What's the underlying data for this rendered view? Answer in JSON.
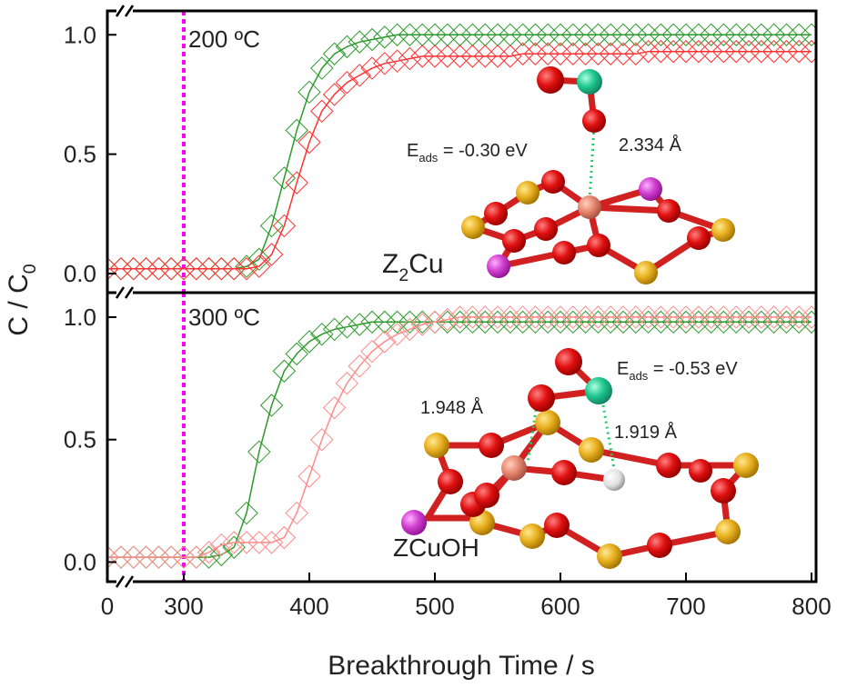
{
  "chart_data": [
    {
      "type": "scatter-line",
      "ylabel": {
        "text": "C / C",
        "sub": "0"
      },
      "ylim": [
        -0.08,
        1.1
      ],
      "yticks": [
        {
          "value": 0,
          "label": "0.0"
        },
        {
          "value": 0.5,
          "label": "0.5"
        },
        {
          "value": 1,
          "label": "1.0"
        }
      ],
      "xlim": [
        0,
        800
      ],
      "x": [
        0,
        250,
        260,
        270,
        280,
        290,
        300,
        310,
        320,
        330,
        340,
        350,
        360,
        370,
        380,
        390,
        400,
        410,
        420,
        430,
        440,
        450,
        460,
        470,
        480,
        490,
        500,
        510,
        520,
        530,
        540,
        550,
        560,
        570,
        580,
        590,
        600,
        610,
        620,
        630,
        640,
        650,
        660,
        670,
        680,
        690,
        700,
        710,
        720,
        730,
        740,
        750,
        760,
        770,
        780,
        790,
        800
      ],
      "series": [
        {
          "color": "#2a9a2a",
          "values": [
            0.02,
            0.02,
            0.02,
            0.02,
            0.02,
            0.02,
            0.02,
            0.02,
            0.02,
            0.02,
            0.02,
            0.03,
            0.06,
            0.2,
            0.4,
            0.6,
            0.76,
            0.86,
            0.92,
            0.95,
            0.97,
            0.98,
            0.99,
            1,
            1,
            1,
            1,
            1,
            1,
            1,
            1,
            1,
            1,
            1,
            1,
            1,
            1,
            1,
            1,
            1,
            1,
            1,
            1,
            1,
            1,
            1,
            1,
            1,
            1,
            1,
            1,
            1,
            1,
            1,
            1,
            1,
            1
          ]
        },
        {
          "color": "#ff3030",
          "values": [
            0.02,
            0.02,
            0.02,
            0.02,
            0.02,
            0.02,
            0.02,
            0.02,
            0.02,
            0.02,
            0.02,
            0.02,
            0.03,
            0.08,
            0.2,
            0.38,
            0.55,
            0.68,
            0.75,
            0.8,
            0.83,
            0.86,
            0.88,
            0.89,
            0.9,
            0.91,
            0.91,
            0.91,
            0.91,
            0.91,
            0.91,
            0.91,
            0.91,
            0.92,
            0.92,
            0.92,
            0.92,
            0.92,
            0.92,
            0.92,
            0.92,
            0.92,
            0.92,
            0.93,
            0.93,
            0.93,
            0.93,
            0.93,
            0.93,
            0.93,
            0.93,
            0.93,
            0.93,
            0.93,
            0.93,
            0.93,
            0.93
          ]
        }
      ],
      "annotations": [
        {
          "text": "200 ºC"
        },
        {
          "text": "E",
          "sub": "ads",
          "text2": " = -0.30 eV"
        },
        {
          "text": "2.334 Å"
        },
        {
          "text": "Z",
          "sub": "2",
          "text2": "Cu"
        }
      ]
    },
    {
      "type": "scatter-line",
      "xlabel": "Breakthrough Time / s",
      "ylim": [
        -0.08,
        1.1
      ],
      "yticks": [
        {
          "value": 0,
          "label": "0.0"
        },
        {
          "value": 0.5,
          "label": "0.5"
        },
        {
          "value": 1,
          "label": "1.0"
        }
      ],
      "xlim": [
        0,
        800
      ],
      "xticks": [
        0,
        300,
        400,
        500,
        600,
        700,
        800
      ],
      "x": [
        0,
        250,
        260,
        270,
        280,
        290,
        300,
        310,
        320,
        330,
        340,
        350,
        360,
        370,
        380,
        390,
        400,
        410,
        420,
        430,
        440,
        450,
        460,
        470,
        480,
        490,
        500,
        510,
        520,
        530,
        540,
        550,
        560,
        570,
        580,
        590,
        600,
        610,
        620,
        630,
        640,
        650,
        660,
        670,
        680,
        690,
        700,
        710,
        720,
        730,
        740,
        750,
        760,
        770,
        780,
        790,
        800
      ],
      "series": [
        {
          "color": "#2a9a2a",
          "values": [
            0.02,
            0.02,
            0.02,
            0.02,
            0.02,
            0.02,
            0.02,
            0.02,
            0.02,
            0.03,
            0.06,
            0.2,
            0.45,
            0.64,
            0.78,
            0.85,
            0.9,
            0.93,
            0.95,
            0.96,
            0.97,
            0.98,
            0.98,
            0.98,
            0.98,
            0.98,
            0.98,
            0.98,
            0.98,
            0.98,
            0.98,
            0.98,
            0.98,
            0.98,
            0.98,
            0.98,
            0.98,
            0.98,
            0.98,
            0.98,
            0.98,
            0.98,
            0.98,
            0.98,
            0.98,
            0.98,
            0.98,
            0.98,
            0.98,
            0.98,
            0.98,
            0.98,
            0.98,
            0.98,
            0.98,
            0.98,
            0.98
          ]
        },
        {
          "color": "#ff8a8a",
          "values": [
            0.02,
            0.02,
            0.02,
            0.02,
            0.02,
            0.02,
            0.02,
            0.02,
            0.04,
            0.07,
            0.08,
            0.08,
            0.08,
            0.08,
            0.1,
            0.2,
            0.35,
            0.5,
            0.63,
            0.73,
            0.8,
            0.86,
            0.9,
            0.93,
            0.95,
            0.97,
            0.98,
            0.99,
            1,
            1,
            1,
            1,
            1,
            1,
            1,
            1,
            1,
            1,
            1,
            1,
            1,
            1,
            1,
            1,
            1,
            1,
            1,
            1,
            1,
            1,
            1,
            1,
            1,
            1,
            1,
            1,
            1
          ]
        }
      ],
      "annotations": [
        {
          "text": "300 ºC"
        },
        {
          "text": "E",
          "sub": "ads",
          "text2": " = -0.53 eV"
        },
        {
          "text": "1.948 Å"
        },
        {
          "text": "1.919 Å"
        },
        {
          "text": "ZCuOH"
        }
      ]
    }
  ]
}
